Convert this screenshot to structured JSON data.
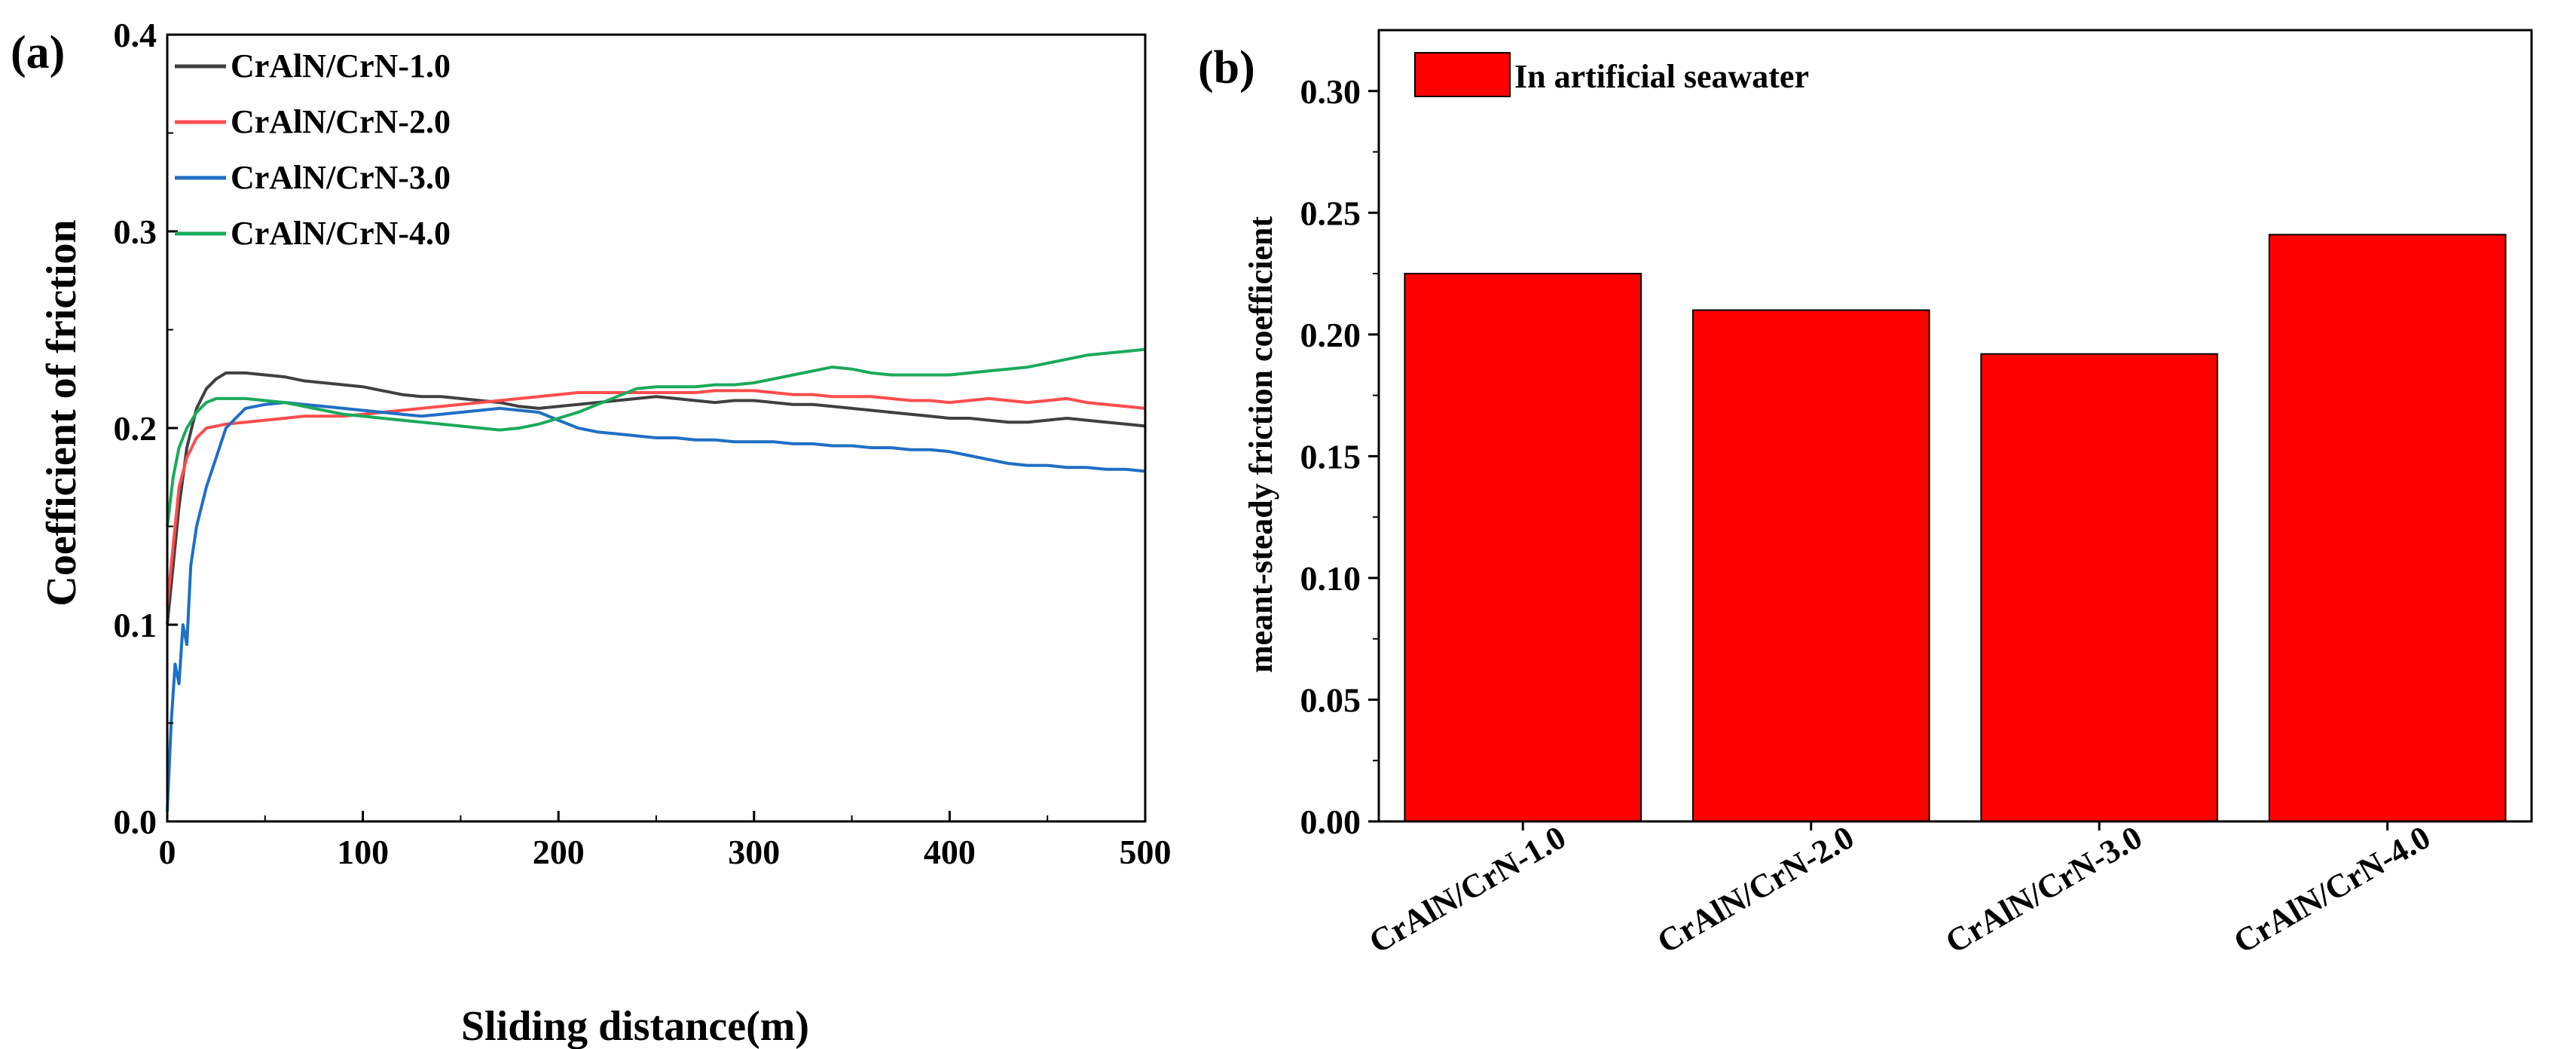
{
  "chart_data": [
    {
      "type": "line",
      "panel_label": "(a)",
      "title": "",
      "xlabel": "Sliding distance(m)",
      "ylabel": "Coefficient of friction",
      "xlim": [
        0,
        500
      ],
      "ylim": [
        0.0,
        0.4
      ],
      "xticks": [
        0,
        100,
        200,
        300,
        400,
        500
      ],
      "xtick_labels": [
        "0",
        "100",
        "200",
        "300",
        "400",
        "500"
      ],
      "yticks": [
        0.0,
        0.1,
        0.2,
        0.3,
        0.4
      ],
      "ytick_labels": [
        "0.0",
        "0.1",
        "0.2",
        "0.3",
        "0.4"
      ],
      "legend_position": "top-left",
      "series": [
        {
          "name": "CrAlN/CrN-1.0",
          "color": "#404040",
          "x": [
            0,
            3,
            6,
            10,
            15,
            20,
            25,
            30,
            40,
            50,
            60,
            70,
            80,
            90,
            100,
            110,
            120,
            130,
            140,
            150,
            160,
            170,
            180,
            190,
            200,
            210,
            220,
            230,
            240,
            250,
            260,
            270,
            280,
            290,
            300,
            310,
            320,
            330,
            340,
            350,
            360,
            370,
            380,
            390,
            400,
            410,
            420,
            430,
            440,
            450,
            460,
            470,
            480,
            490,
            500
          ],
          "y": [
            0.1,
            0.13,
            0.16,
            0.19,
            0.21,
            0.22,
            0.225,
            0.228,
            0.228,
            0.227,
            0.226,
            0.224,
            0.223,
            0.222,
            0.221,
            0.219,
            0.217,
            0.216,
            0.216,
            0.215,
            0.214,
            0.213,
            0.211,
            0.21,
            0.211,
            0.212,
            0.213,
            0.214,
            0.215,
            0.216,
            0.215,
            0.214,
            0.213,
            0.214,
            0.214,
            0.213,
            0.212,
            0.212,
            0.211,
            0.21,
            0.209,
            0.208,
            0.207,
            0.206,
            0.205,
            0.205,
            0.204,
            0.203,
            0.203,
            0.204,
            0.205,
            0.204,
            0.203,
            0.202,
            0.201
          ]
        },
        {
          "name": "CrAlN/CrN-2.0",
          "color": "#ff4d4d",
          "x": [
            0,
            3,
            6,
            10,
            15,
            20,
            25,
            30,
            40,
            50,
            60,
            70,
            80,
            90,
            100,
            110,
            120,
            130,
            140,
            150,
            160,
            170,
            180,
            190,
            200,
            210,
            220,
            230,
            240,
            250,
            260,
            270,
            280,
            290,
            300,
            310,
            320,
            330,
            340,
            350,
            360,
            370,
            380,
            390,
            400,
            410,
            420,
            430,
            440,
            450,
            460,
            470,
            480,
            490,
            500
          ],
          "y": [
            0.11,
            0.14,
            0.17,
            0.185,
            0.195,
            0.2,
            0.201,
            0.202,
            0.203,
            0.204,
            0.205,
            0.206,
            0.206,
            0.206,
            0.207,
            0.208,
            0.209,
            0.21,
            0.211,
            0.212,
            0.213,
            0.214,
            0.215,
            0.216,
            0.217,
            0.218,
            0.218,
            0.218,
            0.218,
            0.218,
            0.218,
            0.218,
            0.219,
            0.219,
            0.219,
            0.218,
            0.217,
            0.217,
            0.216,
            0.216,
            0.216,
            0.215,
            0.214,
            0.214,
            0.213,
            0.214,
            0.215,
            0.214,
            0.213,
            0.214,
            0.215,
            0.213,
            0.212,
            0.211,
            0.21
          ]
        },
        {
          "name": "CrAlN/CrN-3.0",
          "color": "#1f6fc4",
          "x": [
            0,
            2,
            4,
            6,
            8,
            10,
            12,
            15,
            20,
            25,
            30,
            40,
            50,
            60,
            70,
            80,
            90,
            100,
            110,
            120,
            130,
            140,
            150,
            160,
            170,
            180,
            190,
            200,
            210,
            220,
            230,
            240,
            250,
            260,
            270,
            280,
            290,
            300,
            310,
            320,
            330,
            340,
            350,
            360,
            370,
            380,
            390,
            400,
            410,
            420,
            430,
            440,
            450,
            460,
            470,
            480,
            490,
            500
          ],
          "y": [
            0.005,
            0.05,
            0.08,
            0.07,
            0.1,
            0.09,
            0.13,
            0.15,
            0.17,
            0.185,
            0.2,
            0.21,
            0.212,
            0.213,
            0.212,
            0.211,
            0.21,
            0.209,
            0.208,
            0.207,
            0.206,
            0.207,
            0.208,
            0.209,
            0.21,
            0.209,
            0.208,
            0.204,
            0.2,
            0.198,
            0.197,
            0.196,
            0.195,
            0.195,
            0.194,
            0.194,
            0.193,
            0.193,
            0.193,
            0.192,
            0.192,
            0.191,
            0.191,
            0.19,
            0.19,
            0.189,
            0.189,
            0.188,
            0.186,
            0.184,
            0.182,
            0.181,
            0.181,
            0.18,
            0.18,
            0.179,
            0.179,
            0.178
          ]
        },
        {
          "name": "CrAlN/CrN-4.0",
          "color": "#1aaa5a",
          "x": [
            0,
            3,
            6,
            10,
            15,
            20,
            25,
            30,
            40,
            50,
            60,
            70,
            80,
            90,
            100,
            110,
            120,
            130,
            140,
            150,
            160,
            170,
            180,
            190,
            200,
            210,
            220,
            230,
            240,
            250,
            260,
            270,
            280,
            290,
            300,
            310,
            320,
            330,
            340,
            350,
            360,
            370,
            380,
            390,
            400,
            410,
            420,
            430,
            440,
            450,
            460,
            470,
            480,
            490,
            500
          ],
          "y": [
            0.15,
            0.175,
            0.19,
            0.2,
            0.208,
            0.213,
            0.215,
            0.215,
            0.215,
            0.214,
            0.213,
            0.211,
            0.209,
            0.207,
            0.206,
            0.205,
            0.204,
            0.203,
            0.202,
            0.201,
            0.2,
            0.199,
            0.2,
            0.202,
            0.205,
            0.208,
            0.212,
            0.216,
            0.22,
            0.221,
            0.221,
            0.221,
            0.222,
            0.222,
            0.223,
            0.225,
            0.227,
            0.229,
            0.231,
            0.23,
            0.228,
            0.227,
            0.227,
            0.227,
            0.227,
            0.228,
            0.229,
            0.23,
            0.231,
            0.233,
            0.235,
            0.237,
            0.238,
            0.239,
            0.24
          ]
        }
      ]
    },
    {
      "type": "bar",
      "panel_label": "(b)",
      "title": "",
      "xlabel": "",
      "ylabel": "meant-steady friction coefficient",
      "categories": [
        "CrAlN/CrN-1.0",
        "CrAlN/CrN-2.0",
        "CrAlN/CrN-3.0",
        "CrAlN/CrN-4.0"
      ],
      "values": [
        0.225,
        0.21,
        0.192,
        0.241
      ],
      "ylim": [
        0.0,
        0.325
      ],
      "yticks": [
        0.0,
        0.05,
        0.1,
        0.15,
        0.2,
        0.25,
        0.3
      ],
      "ytick_labels": [
        "0.00",
        "0.05",
        "0.10",
        "0.15",
        "0.20",
        "0.25",
        "0.30"
      ],
      "bar_color": "#ff0000",
      "legend_position": "top-left",
      "legend_label": "In artificial seawater"
    }
  ]
}
